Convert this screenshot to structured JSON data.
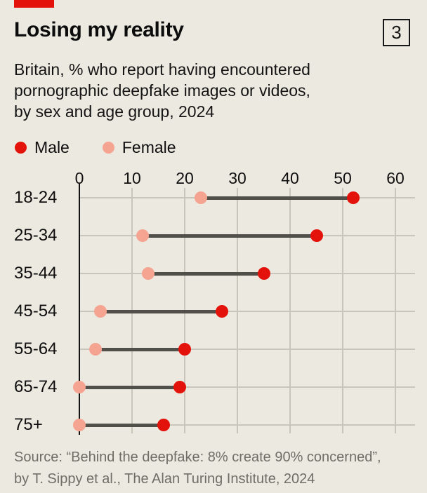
{
  "colors": {
    "background": "#ece9e0",
    "accent_red": "#e3120b",
    "female_pink": "#f6a492",
    "connector_gray": "#514f49",
    "grid_gray": "#c8c5ba",
    "text_dark": "#0f0f0f",
    "source_gray": "#6f6d66"
  },
  "header": {
    "title": "Losing my reality",
    "figure_number": "3",
    "subtitle_lines": [
      "Britain, % who report having encountered",
      "pornographic deepfake images or videos,",
      "by sex and age group, 2024"
    ]
  },
  "legend": {
    "male_label": "Male",
    "female_label": "Female"
  },
  "chart_data": {
    "type": "scatter",
    "variant": "dumbbell",
    "orientation": "horizontal",
    "title": "Losing my reality",
    "subtitle": "Britain, % who report having encountered pornographic deepfake images or videos, by sex and age group, 2024",
    "categories": [
      "18-24",
      "25-34",
      "35-44",
      "45-54",
      "55-64",
      "65-74",
      "75+"
    ],
    "series": [
      {
        "name": "Male",
        "color": "#e3120b",
        "values": [
          52,
          45,
          35,
          27,
          20,
          19,
          16
        ]
      },
      {
        "name": "Female",
        "color": "#f6a492",
        "values": [
          23,
          12,
          13,
          4,
          3,
          0,
          0
        ]
      }
    ],
    "xlim": [
      0,
      60
    ],
    "xticks": [
      0,
      10,
      20,
      30,
      40,
      50,
      60
    ],
    "grid": true,
    "axis_position": "top",
    "legend_position": "top-left"
  },
  "source": {
    "lines": [
      "Source: “Behind the deepfake: 8% create 90% concerned”,",
      "by T. Sippy et al., The Alan Turing Institute, 2024"
    ]
  }
}
